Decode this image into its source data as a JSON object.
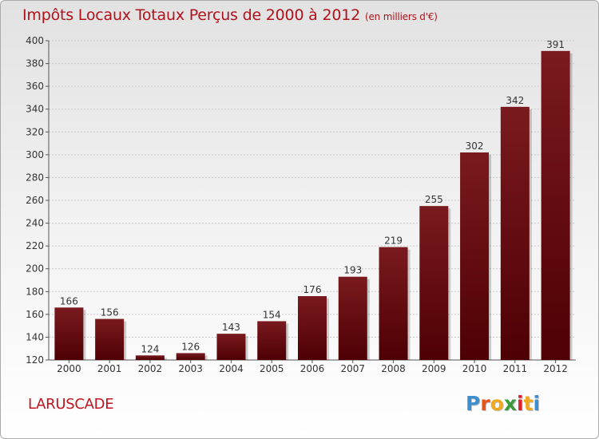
{
  "title": "Impôts Locaux Totaux Perçus de 2000 à 2012",
  "title_unit": "(en milliers d'€)",
  "place": "LARUSCADE",
  "logo": {
    "letters": [
      "P",
      "r",
      "o",
      "x",
      "i",
      "t",
      "i"
    ],
    "colors": [
      "#3b8ed0",
      "#e2541a",
      "#f0a81e",
      "#3a9a3a",
      "#d7262b",
      "#f0a81e",
      "#3b8ed0"
    ]
  },
  "colors": {
    "bar": "#7a1a1e",
    "bar_dark": "#4e0004",
    "title": "#b0121c"
  },
  "chart_data": {
    "type": "bar",
    "categories": [
      "2000",
      "2001",
      "2002",
      "2003",
      "2004",
      "2005",
      "2006",
      "2007",
      "2008",
      "2009",
      "2010",
      "2011",
      "2012"
    ],
    "values": [
      166,
      156,
      124,
      126,
      143,
      154,
      176,
      193,
      219,
      255,
      302,
      342,
      391
    ],
    "ylim": [
      120,
      400
    ],
    "yticks": [
      120,
      140,
      160,
      180,
      200,
      220,
      240,
      260,
      280,
      300,
      320,
      340,
      360,
      380,
      400
    ],
    "grid": true
  }
}
